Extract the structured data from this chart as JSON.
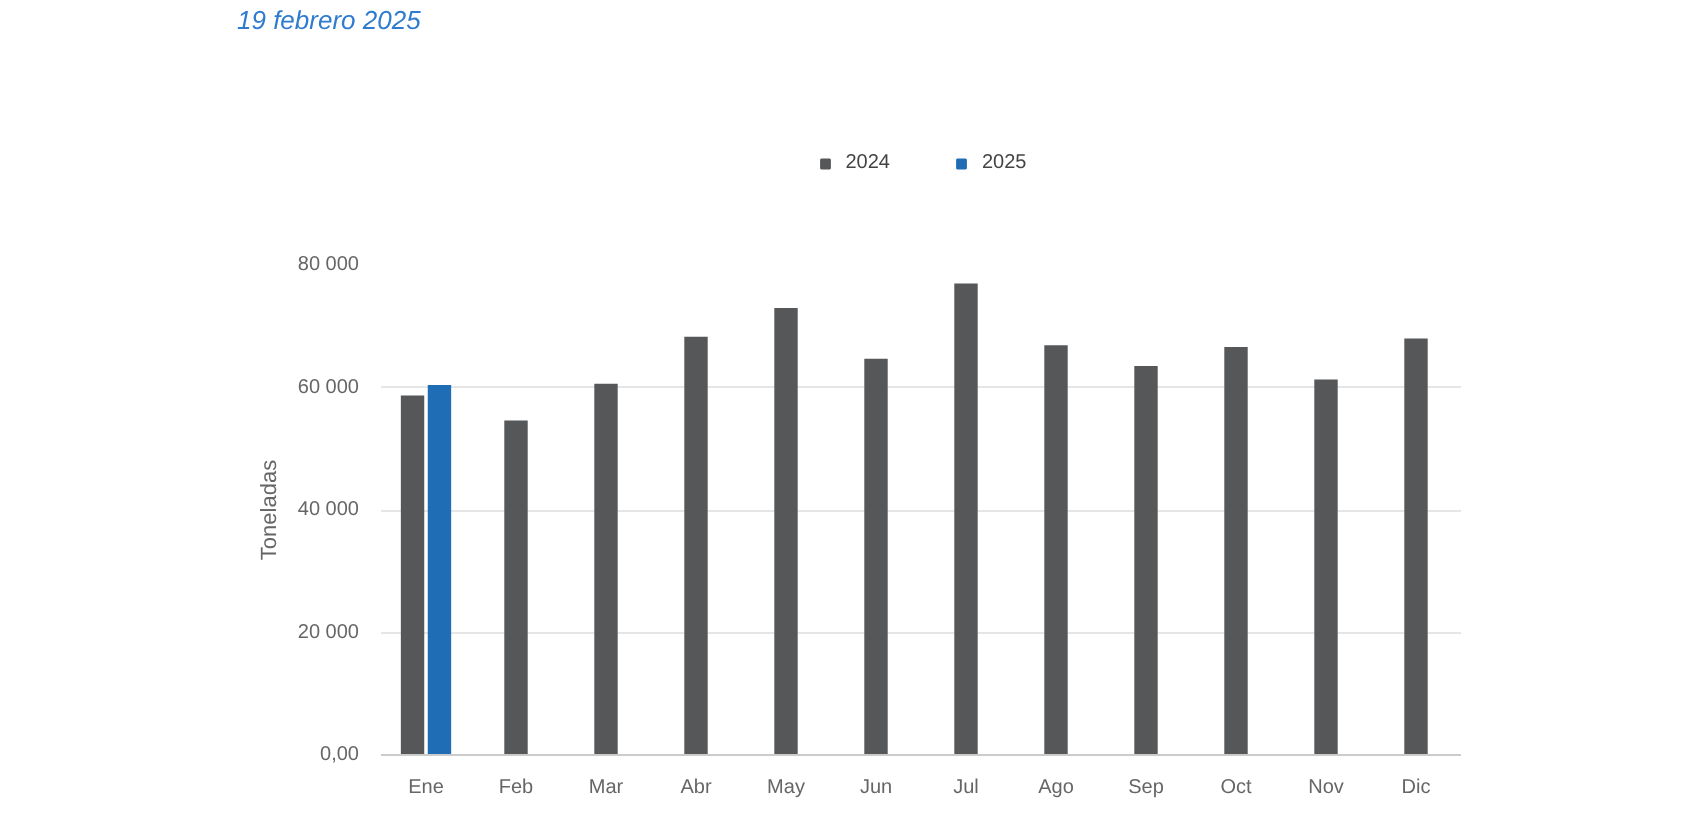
{
  "chart_data": {
    "type": "bar",
    "categories": [
      "Ene",
      "Feb",
      "Mar",
      "Abr",
      "May",
      "Jun",
      "Jul",
      "Ago",
      "Sep",
      "Oct",
      "Nov",
      "Dic"
    ],
    "series": [
      {
        "name": "2024",
        "color": "#555759",
        "values": [
          58700,
          54600,
          60600,
          68300,
          73000,
          64700,
          77000,
          66900,
          63500,
          66600,
          61300,
          68000
        ]
      },
      {
        "name": "2025",
        "color": "#1f6db5",
        "values": [
          60400,
          null,
          null,
          null,
          null,
          null,
          null,
          null,
          null,
          null,
          null,
          null
        ]
      }
    ],
    "ylabel": "Toneladas",
    "ylim": [
      0,
      80000
    ],
    "yticks": [
      {
        "value": 0,
        "label": "0,00"
      },
      {
        "value": 20000,
        "label": "20 000"
      },
      {
        "value": 40000,
        "label": "40 000"
      },
      {
        "value": 60000,
        "label": "60 000"
      },
      {
        "value": 80000,
        "label": "80 000"
      }
    ],
    "annotations": [
      "19 febrero 2025"
    ],
    "grid": "y",
    "legend": "top"
  }
}
